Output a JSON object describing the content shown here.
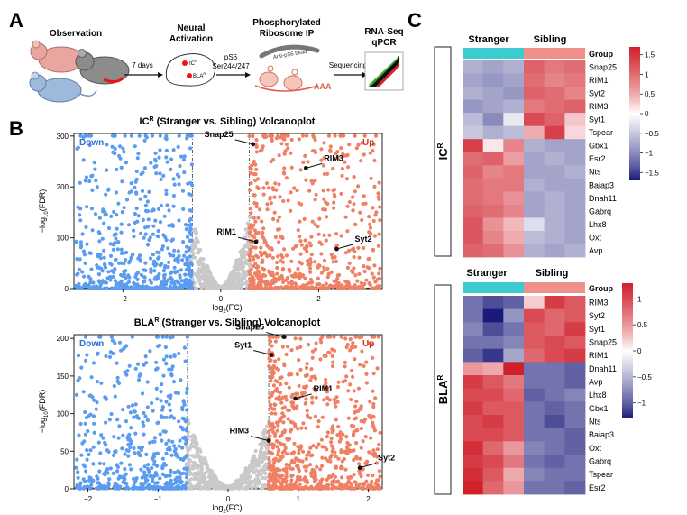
{
  "panels": {
    "a": "A",
    "b": "B",
    "c": "C"
  },
  "schematic": {
    "observation": "Observation",
    "days": "7 days",
    "neural_activation": [
      "Neural",
      "Activation"
    ],
    "brain_ic": "IC",
    "brain_ic_sup": "R",
    "brain_bla": "BLA",
    "brain_bla_sup": "R",
    "ps6": "pS6",
    "ser": "Ser244/247",
    "phospho": [
      "Phosphorylated",
      "Ribosome IP"
    ],
    "antibody": "Anti-pS6 bead",
    "aaa": "AAA",
    "sequencing": "Sequencing",
    "rnaseq": [
      "RNA-Seq",
      "qPCR"
    ]
  },
  "volcano_common": {
    "down": "Down",
    "up": "Up",
    "x_label": "log",
    "x_label_sub": "2",
    "x_label_end": "(FC)",
    "y_label": "−log",
    "y_label_sub": "10",
    "y_label_end": "(FDR)"
  },
  "volcano_ic": {
    "title_prefix": "IC",
    "title_sup": "R",
    "title_rest": " (Stranger vs. Sibling) Volcanoplot",
    "xlim": [
      -3.0,
      3.3
    ],
    "ylim": [
      0,
      305
    ],
    "xticks": [
      -2,
      0,
      2
    ],
    "xtick_labels": [
      "−2",
      "0",
      "2"
    ],
    "yticks": [
      0,
      100,
      200,
      300
    ],
    "ytick_labels": [
      "0",
      "100",
      "200",
      "300"
    ],
    "fc_threshold": 0.58,
    "fdr_line": 1.3,
    "n_down": 600,
    "n_up": 620,
    "n_ns": 480,
    "seed": 11,
    "labels": [
      {
        "text": "Snap25",
        "x": 0.66,
        "y": 284
      },
      {
        "text": "RIM3",
        "x": 1.74,
        "y": 237
      },
      {
        "text": "RIM1",
        "x": 0.72,
        "y": 92
      },
      {
        "text": "Syt2",
        "x": 2.37,
        "y": 78
      }
    ]
  },
  "volcano_bla": {
    "title_prefix": "BLA",
    "title_sup": "R",
    "title_rest": " (Stranger vs. Sibling) Volcanoplot",
    "xlim": [
      -2.2,
      2.2
    ],
    "ylim": [
      0,
      205
    ],
    "xticks": [
      -2,
      -1,
      0,
      1,
      2
    ],
    "xtick_labels": [
      "−2",
      "−1",
      "0",
      "1",
      "2"
    ],
    "yticks": [
      0,
      50,
      100,
      150,
      200
    ],
    "ytick_labels": [
      "0",
      "50",
      "100",
      "150",
      "200"
    ],
    "fc_threshold": 0.58,
    "fdr_line": 1.3,
    "n_down": 520,
    "n_up": 760,
    "n_ns": 520,
    "seed": 29,
    "labels": [
      {
        "text": "Snap25",
        "x": 0.8,
        "y": 205
      },
      {
        "text": "Syt1",
        "x": 0.62,
        "y": 178
      },
      {
        "text": "RIM1",
        "x": 0.96,
        "y": 120
      },
      {
        "text": "RIM3",
        "x": 0.58,
        "y": 64
      },
      {
        "text": "Syt2",
        "x": 1.88,
        "y": 28
      }
    ]
  },
  "heatmap_ic": {
    "side_label": "IC",
    "side_sup": "R",
    "group_label": "Group",
    "stranger": "Stranger",
    "sibling": "Sibling",
    "genes": [
      "Snap25",
      "RIM1",
      "Syt2",
      "RIM3",
      "Syt1",
      "Tspear",
      "Gbx1",
      "Esr2",
      "Nts",
      "Baiap3",
      "Dnah11",
      "Gabrq",
      "Lhx8",
      "Oxt",
      "Avp"
    ],
    "values": [
      [
        -0.7,
        -0.8,
        -0.7,
        1.1,
        0.9,
        1.0
      ],
      [
        -0.8,
        -0.9,
        -0.8,
        1.0,
        0.8,
        0.9
      ],
      [
        -0.7,
        -0.8,
        -0.9,
        1.1,
        1.0,
        0.8
      ],
      [
        -0.9,
        -0.8,
        -0.7,
        0.9,
        1.0,
        1.1
      ],
      [
        -0.6,
        -1.0,
        -0.2,
        1.3,
        1.1,
        0.3
      ],
      [
        -0.5,
        -0.7,
        -0.6,
        0.5,
        1.4,
        0.2
      ],
      [
        1.4,
        0.1,
        0.8,
        -0.7,
        -0.8,
        -0.8
      ],
      [
        1.0,
        1.1,
        0.6,
        -0.8,
        -0.7,
        -0.8
      ],
      [
        1.1,
        0.8,
        0.9,
        -0.8,
        -0.8,
        -0.7
      ],
      [
        1.0,
        0.9,
        0.9,
        -0.7,
        -0.8,
        -0.8
      ],
      [
        1.0,
        0.9,
        0.7,
        -0.8,
        -0.7,
        -0.8
      ],
      [
        1.1,
        1.0,
        0.8,
        -0.8,
        -0.7,
        -0.8
      ],
      [
        1.2,
        0.7,
        0.4,
        -0.3,
        -0.7,
        -0.8
      ],
      [
        1.2,
        0.8,
        0.5,
        -0.6,
        -0.7,
        -0.8
      ],
      [
        1.1,
        1.0,
        0.7,
        -0.7,
        -0.8,
        -0.7
      ]
    ],
    "legend_ticks": [
      1.5,
      1,
      0.5,
      0,
      -0.5,
      -1,
      -1.5
    ],
    "legend_tick_labels": [
      "1.5",
      "1",
      "0.5",
      "0",
      "−0.5",
      "−1",
      "−1.5"
    ],
    "legend_range": [
      -1.7,
      1.7
    ]
  },
  "heatmap_bla": {
    "side_label": "BLA",
    "side_sup": "R",
    "group_label": "Group",
    "stranger": "Stranger",
    "sibling": "Sibling",
    "genes": [
      "RIM3",
      "Syt2",
      "Syt1",
      "Snap25",
      "RIM1",
      "Dnah11",
      "Avp",
      "Lhx8",
      "Gbx1",
      "Nts",
      "Baiap3",
      "Oxt",
      "Gabrq",
      "Tspear",
      "Esr2"
    ],
    "values": [
      [
        -0.9,
        -1.1,
        -1.0,
        0.2,
        1.1,
        0.9
      ],
      [
        -0.9,
        -1.3,
        -0.7,
        1.0,
        0.8,
        0.9
      ],
      [
        -0.8,
        -1.1,
        -0.9,
        0.9,
        0.8,
        1.1
      ],
      [
        -0.9,
        -0.9,
        -0.8,
        0.9,
        1.0,
        0.9
      ],
      [
        -1.0,
        -1.2,
        -0.6,
        0.8,
        1.0,
        1.1
      ],
      [
        0.5,
        0.4,
        1.4,
        -0.9,
        -0.9,
        -1.0
      ],
      [
        1.1,
        0.9,
        0.7,
        -0.9,
        -0.9,
        -1.0
      ],
      [
        1.0,
        1.0,
        0.8,
        -1.0,
        -0.9,
        -0.8
      ],
      [
        1.1,
        0.9,
        0.9,
        -0.9,
        -1.0,
        -0.9
      ],
      [
        1.0,
        1.1,
        0.9,
        -0.9,
        -1.1,
        -0.9
      ],
      [
        1.0,
        1.0,
        0.9,
        -0.9,
        -0.9,
        -1.0
      ],
      [
        1.2,
        0.8,
        0.5,
        -0.8,
        -0.9,
        -1.0
      ],
      [
        1.1,
        1.0,
        0.7,
        -0.9,
        -1.0,
        -0.9
      ],
      [
        1.2,
        0.9,
        0.4,
        -0.8,
        -0.9,
        -0.9
      ],
      [
        1.3,
        0.8,
        0.5,
        -0.9,
        -0.9,
        -1.0
      ]
    ],
    "legend_ticks": [
      1,
      0.5,
      0,
      -0.5,
      -1
    ],
    "legend_tick_labels": [
      "1",
      "0.5",
      "0",
      "−0.5",
      "−1"
    ],
    "legend_range": [
      -1.3,
      1.3
    ]
  },
  "colors": {
    "down": "#5b9cf0",
    "up": "#ef8064",
    "ns": "#c9c9c9",
    "group_stranger": "#3ccbcf",
    "group_sibling": "#f0908a",
    "heat_low": "#1a1a7a",
    "heat_mid": "#ffffff",
    "heat_high": "#d0202a",
    "down_text": "#2f6fd8",
    "up_text": "#d62f1f"
  },
  "chart_data": [
    {
      "type": "scatter",
      "title": "ICR (Stranger vs. Sibling) Volcanoplot",
      "xlabel": "log2(FC)",
      "ylabel": "-log10(FDR)",
      "xlim": [
        -3.0,
        3.3
      ],
      "ylim": [
        0,
        305
      ],
      "annotations": [
        {
          "label": "Snap25",
          "x": 0.66,
          "y": 284
        },
        {
          "label": "RIM3",
          "x": 1.74,
          "y": 237
        },
        {
          "label": "RIM1",
          "x": 0.72,
          "y": 92
        },
        {
          "label": "Syt2",
          "x": 2.37,
          "y": 78
        }
      ],
      "legend": [
        "Down",
        "Up"
      ]
    },
    {
      "type": "scatter",
      "title": "BLAR (Stranger vs. Sibling) Volcanoplot",
      "xlabel": "log2(FC)",
      "ylabel": "-log10(FDR)",
      "xlim": [
        -2.2,
        2.2
      ],
      "ylim": [
        0,
        205
      ],
      "annotations": [
        {
          "label": "Snap25",
          "x": 0.8,
          "y": 205
        },
        {
          "label": "Syt1",
          "x": 0.62,
          "y": 178
        },
        {
          "label": "RIM1",
          "x": 0.96,
          "y": 120
        },
        {
          "label": "RIM3",
          "x": 0.58,
          "y": 64
        },
        {
          "label": "Syt2",
          "x": 1.88,
          "y": 28
        }
      ],
      "legend": [
        "Down",
        "Up"
      ]
    },
    {
      "type": "heatmap",
      "title": "ICR",
      "columns": [
        "Stranger",
        "Stranger",
        "Stranger",
        "Sibling",
        "Sibling",
        "Sibling"
      ],
      "rows": [
        "Snap25",
        "RIM1",
        "Syt2",
        "RIM3",
        "Syt1",
        "Tspear",
        "Gbx1",
        "Esr2",
        "Nts",
        "Baiap3",
        "Dnah11",
        "Gabrq",
        "Lhx8",
        "Oxt",
        "Avp"
      ],
      "color_range": [
        -1.5,
        1.5
      ]
    },
    {
      "type": "heatmap",
      "title": "BLAR",
      "columns": [
        "Stranger",
        "Stranger",
        "Stranger",
        "Sibling",
        "Sibling",
        "Sibling"
      ],
      "rows": [
        "RIM3",
        "Syt2",
        "Syt1",
        "Snap25",
        "RIM1",
        "Dnah11",
        "Avp",
        "Lhx8",
        "Gbx1",
        "Nts",
        "Baiap3",
        "Oxt",
        "Gabrq",
        "Tspear",
        "Esr2"
      ],
      "color_range": [
        -1,
        1
      ]
    }
  ]
}
